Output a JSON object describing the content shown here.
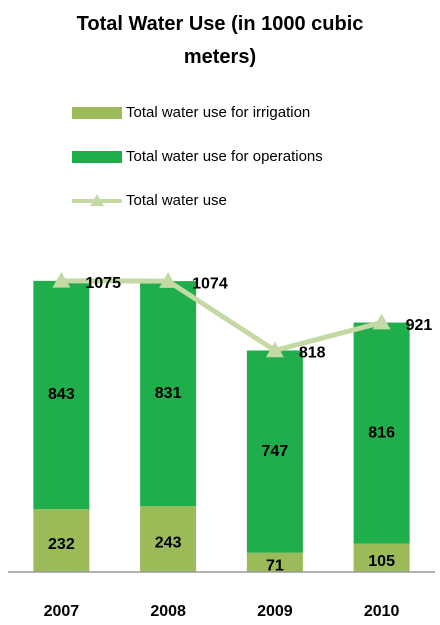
{
  "chart_data": {
    "type": "bar",
    "stacked": true,
    "title": "Total Water Use (in 1000 cubic meters)",
    "categories": [
      "2007",
      "2008",
      "2009",
      "2010"
    ],
    "series": [
      {
        "name": "Total water use for irrigation",
        "color": "#9bbb59",
        "values": [
          232,
          243,
          71,
          105
        ]
      },
      {
        "name": "Total water use for operations",
        "color": "#1fae4b",
        "values": [
          843,
          831,
          747,
          816
        ]
      },
      {
        "name": "Total water use",
        "type": "line",
        "color": "#c4d9a3",
        "values": [
          1075,
          1074,
          818,
          921
        ]
      }
    ],
    "ylim": [
      0,
      1200
    ]
  }
}
